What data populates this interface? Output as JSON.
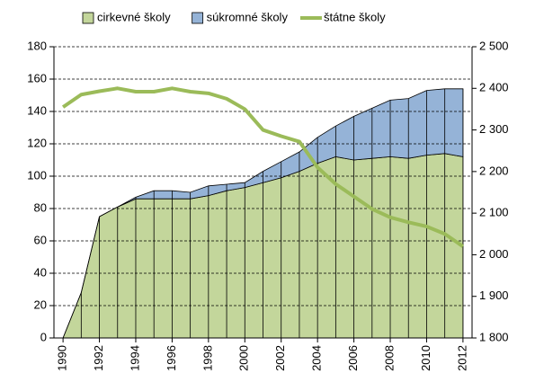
{
  "chart_data": {
    "type": "stacked-area-line",
    "x": [
      1990,
      1991,
      1992,
      1993,
      1994,
      1995,
      1996,
      1997,
      1998,
      1999,
      2000,
      2001,
      2002,
      2003,
      2004,
      2005,
      2006,
      2007,
      2008,
      2009,
      2010,
      2011,
      2012
    ],
    "xlim": [
      1989.5,
      2012.5
    ],
    "xticks": [
      1990,
      1992,
      1994,
      1996,
      1998,
      2000,
      2002,
      2004,
      2006,
      2008,
      2010,
      2012
    ],
    "ylim": [
      0,
      180
    ],
    "yticks": [
      0,
      20,
      40,
      60,
      80,
      100,
      120,
      140,
      160,
      180
    ],
    "y2lim": [
      1800,
      2500
    ],
    "y2ticks": [
      {
        "value": 1800,
        "label": "1 800"
      },
      {
        "value": 1900,
        "label": "1 900"
      },
      {
        "value": 2000,
        "label": "2 000"
      },
      {
        "value": 2100,
        "label": "2 100"
      },
      {
        "value": 2200,
        "label": "2 200"
      },
      {
        "value": 2300,
        "label": "2 300"
      },
      {
        "value": 2400,
        "label": "2 400"
      },
      {
        "value": 2500,
        "label": "2 500"
      }
    ],
    "grid": true,
    "legend": "top",
    "series": [
      {
        "name": "cirkevné školy",
        "kind": "area",
        "color": "#c3d69b",
        "values": [
          0,
          28,
          75,
          81,
          86,
          86,
          86,
          86,
          88,
          91,
          93,
          96,
          99,
          103,
          108,
          112,
          110,
          111,
          112,
          111,
          113,
          114,
          112
        ]
      },
      {
        "name": "súkromné školy",
        "kind": "area",
        "color": "#95b3d7",
        "values": [
          0,
          0,
          0,
          0,
          1,
          5,
          5,
          4,
          6,
          4,
          3,
          7,
          10,
          12,
          16,
          19,
          27,
          31,
          35,
          37,
          40,
          40,
          42
        ]
      },
      {
        "name": "štátne školy",
        "kind": "line",
        "axis": "y2",
        "color": "#9bbb59",
        "values": [
          2355,
          2385,
          2393,
          2400,
          2392,
          2392,
          2400,
          2392,
          2388,
          2375,
          2350,
          2300,
          2285,
          2272,
          2210,
          2170,
          2140,
          2110,
          2090,
          2078,
          2068,
          2050,
          2020
        ]
      }
    ]
  }
}
